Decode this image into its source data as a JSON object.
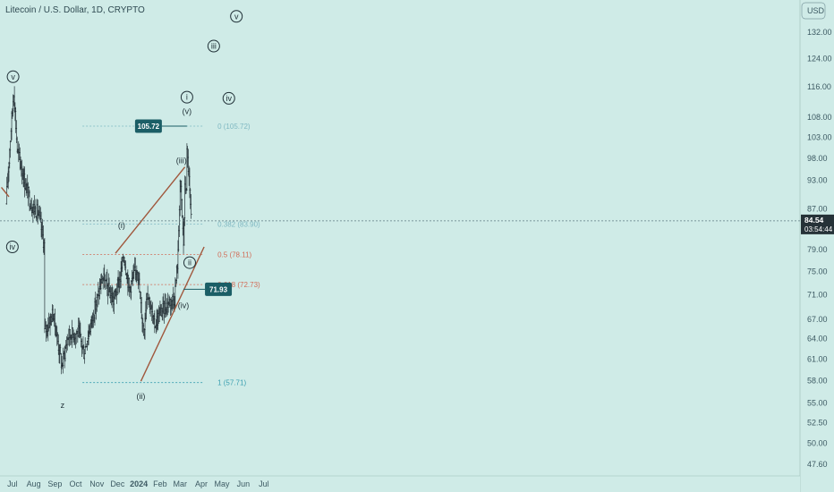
{
  "header": {
    "title": "Litecoin / U.S. Dollar, 1D, CRYPTO",
    "currency": "USD"
  },
  "colors": {
    "background": "#cfebe7",
    "candle": "#263238",
    "trendline": "#a0573c",
    "fib_fill": "#d95b43",
    "fib_label": "#90aeb2",
    "wave_teal": "#3a9fb0",
    "callout": "#1b5e66",
    "dark_wave": "#1f2f36"
  },
  "chart_data": {
    "type": "candlestick",
    "symbol": "Litecoin / U.S. Dollar",
    "interval": "1D",
    "exchange": "CRYPTO",
    "x_tick_labels": [
      "Jul",
      "Aug",
      "Sep",
      "Oct",
      "Nov",
      "Dec",
      "2024",
      "Feb",
      "Mar",
      "Apr",
      "May",
      "Jun",
      "Jul"
    ],
    "y_axis": {
      "scale": "log",
      "tick_labels": [
        "132.00",
        "124.00",
        "116.00",
        "108.00",
        "103.00",
        "98.00",
        "93.00",
        "87.00",
        "79.00",
        "75.00",
        "71.00",
        "67.00",
        "64.00",
        "61.00",
        "58.00",
        "55.00",
        "52.50",
        "50.00",
        "47.60"
      ],
      "range": [
        46.5,
        140
      ]
    },
    "last_price": {
      "value": "84.54",
      "countdown": "03:54:44"
    },
    "price_anchors": [
      {
        "date": "2023-06-22",
        "close": 88
      },
      {
        "date": "2023-07-03",
        "close": 115
      },
      {
        "date": "2023-07-08",
        "close": 100
      },
      {
        "date": "2023-07-20",
        "close": 92
      },
      {
        "date": "2023-07-28",
        "close": 88
      },
      {
        "date": "2023-08-08",
        "close": 86
      },
      {
        "date": "2023-08-16",
        "close": 80
      },
      {
        "date": "2023-08-17",
        "close": 65
      },
      {
        "date": "2023-08-29",
        "close": 68
      },
      {
        "date": "2023-09-06",
        "close": 63
      },
      {
        "date": "2023-09-11",
        "close": 60
      },
      {
        "date": "2023-09-20",
        "close": 64.5
      },
      {
        "date": "2023-10-05",
        "close": 65
      },
      {
        "date": "2023-10-13",
        "close": 62
      },
      {
        "date": "2023-10-20",
        "close": 65
      },
      {
        "date": "2023-11-01",
        "close": 70
      },
      {
        "date": "2023-11-09",
        "close": 74
      },
      {
        "date": "2023-11-25",
        "close": 70
      },
      {
        "date": "2023-12-05",
        "close": 74
      },
      {
        "date": "2023-12-10",
        "close": 78
      },
      {
        "date": "2023-12-18",
        "close": 72
      },
      {
        "date": "2023-12-30",
        "close": 76
      },
      {
        "date": "2024-01-03",
        "close": 70
      },
      {
        "date": "2024-01-08",
        "close": 65
      },
      {
        "date": "2024-01-13",
        "close": 72
      },
      {
        "date": "2024-01-23",
        "close": 66
      },
      {
        "date": "2024-02-01",
        "close": 68
      },
      {
        "date": "2024-02-15",
        "close": 70
      },
      {
        "date": "2024-02-22",
        "close": 70.5
      },
      {
        "date": "2024-02-27",
        "close": 78
      },
      {
        "date": "2024-03-01",
        "close": 93
      },
      {
        "date": "2024-03-03",
        "close": 88
      },
      {
        "date": "2024-03-06",
        "close": 80
      },
      {
        "date": "2024-03-08",
        "close": 91
      },
      {
        "date": "2024-03-10",
        "close": 92
      },
      {
        "date": "2024-03-11",
        "close": 99
      },
      {
        "date": "2024-03-13",
        "close": 96
      },
      {
        "date": "2024-03-15",
        "close": 90
      },
      {
        "date": "2024-03-17",
        "close": 84.54
      }
    ],
    "fibonacci": [
      {
        "label": "0 (105.72)",
        "price": 105.72
      },
      {
        "label": "0.382 (83.90)",
        "price": 83.9
      },
      {
        "label": "0.5 (78.11)",
        "price": 78.11
      },
      {
        "label": "0.618 (72.73)",
        "price": 72.73
      },
      {
        "label": "1 (57.71)",
        "price": 57.71
      }
    ],
    "price_callouts": [
      {
        "text": "105.72",
        "price": 105.72,
        "date": "2024-03-11"
      },
      {
        "text": "71.93",
        "price": 71.93,
        "date": "2024-03-06"
      }
    ],
    "trendlines": [
      {
        "from": {
          "date": "2023-06-15",
          "price": 91.5
        },
        "to": {
          "date": "2023-06-26",
          "price": 89.5
        }
      },
      {
        "from": {
          "date": "2023-11-28",
          "price": 78.3
        },
        "to": {
          "date": "2024-03-08",
          "price": 96
        }
      },
      {
        "from": {
          "date": "2024-01-04",
          "price": 57.9
        },
        "to": {
          "date": "2024-04-05",
          "price": 79.5
        }
      }
    ],
    "wave_labels": [
      {
        "text": "v",
        "date": "2023-07-02",
        "price": 118.8,
        "style": "circled"
      },
      {
        "text": "iv",
        "date": "2023-07-01",
        "price": 79.5,
        "style": "circled"
      },
      {
        "text": "z",
        "date": "2023-09-12",
        "price": 54.7,
        "style": "plain"
      },
      {
        "text": "(i)",
        "date": "2023-12-07",
        "price": 83.6,
        "style": "teal"
      },
      {
        "text": "(ii)",
        "date": "2024-01-04",
        "price": 55.9,
        "style": "teal"
      },
      {
        "text": "(iii)",
        "date": "2024-03-03",
        "price": 97.5,
        "style": "teal"
      },
      {
        "text": "(iv)",
        "date": "2024-03-06",
        "price": 69.2,
        "style": "teal"
      },
      {
        "text": "(v)",
        "date": "2024-03-11",
        "price": 109.5,
        "style": "teal"
      },
      {
        "text": "i",
        "date": "2024-03-11",
        "price": 113.2,
        "style": "circled"
      },
      {
        "text": "ii",
        "date": "2024-03-15",
        "price": 76.6,
        "style": "circled"
      },
      {
        "text": "iii",
        "date": "2024-04-19",
        "price": 127.7,
        "style": "circled"
      },
      {
        "text": "iv",
        "date": "2024-05-11",
        "price": 112.9,
        "style": "circled"
      },
      {
        "text": "v",
        "date": "2024-05-22",
        "price": 137.0,
        "style": "circled"
      }
    ]
  }
}
